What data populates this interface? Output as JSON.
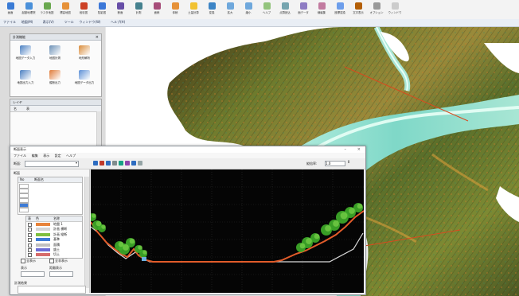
{
  "ribbon": {
    "items": [
      {
        "label": "画面",
        "icon": "window-icon",
        "color": "#3a7bd5"
      },
      {
        "label": "起動地理院",
        "icon": "globe-icon",
        "color": "#4a90d9"
      },
      {
        "label": "ラスタ地図",
        "icon": "raster-icon",
        "color": "#6aa84f"
      },
      {
        "label": "標高地図",
        "icon": "elevation-icon",
        "color": "#e69138"
      },
      {
        "label": "段彩図",
        "icon": "color-relief-icon",
        "color": "#cc4125"
      },
      {
        "label": "陰影図",
        "icon": "shade-icon",
        "color": "#3c78d8"
      },
      {
        "label": "断面",
        "icon": "profile-icon",
        "color": "#674ea7"
      },
      {
        "label": "計測",
        "icon": "ruler-icon",
        "color": "#45818e"
      },
      {
        "label": "面積",
        "icon": "area-icon",
        "color": "#a64d79"
      },
      {
        "label": "体積",
        "icon": "volume-icon",
        "color": "#e69138"
      },
      {
        "label": "土量計算",
        "icon": "calc-icon",
        "color": "#f1c232"
      },
      {
        "label": "変換",
        "icon": "convert-icon",
        "color": "#3d85c6"
      },
      {
        "label": "拡大",
        "icon": "zoom-in-icon",
        "color": "#6fa8dc"
      },
      {
        "label": "縮小",
        "icon": "zoom-out-icon",
        "color": "#6fa8dc"
      },
      {
        "label": "ヘルプ",
        "icon": "help-icon",
        "color": "#93c47d"
      },
      {
        "label": "点群読込",
        "icon": "pointcloud-icon",
        "color": "#76a5af"
      },
      {
        "label": "面データ",
        "icon": "surface-icon",
        "color": "#8e7cc3"
      },
      {
        "label": "線編集",
        "icon": "line-edit-icon",
        "color": "#c27ba0"
      },
      {
        "label": "座標変換",
        "icon": "coord-icon",
        "color": "#6d9eeb"
      },
      {
        "label": "文字表示",
        "icon": "text-icon",
        "color": "#b45f06"
      },
      {
        "label": "オプション",
        "icon": "options-icon",
        "color": "#999999"
      },
      {
        "label": "ウィンドウ",
        "icon": "windows-icon",
        "color": "#cccccc"
      }
    ]
  },
  "menubar": {
    "items": [
      "ファイル",
      "地図(M)",
      "表示(V)",
      "ツール",
      "ウィンドウ(W)",
      "ヘルプ(H)"
    ]
  },
  "panel_tools": {
    "title": "計測機能",
    "tools": [
      {
        "label": "地図データ入力",
        "icon": "map-input-icon",
        "color": "#4a7fc1"
      },
      {
        "label": "地図計測",
        "icon": "map-measure-icon",
        "color": "#6b8fb5"
      },
      {
        "label": "地形解析",
        "icon": "terrain-icon",
        "color": "#d98b3a"
      },
      {
        "label": "地図出力入力",
        "icon": "map-io-icon",
        "color": "#4a7fc1"
      },
      {
        "label": "縦断出力",
        "icon": "profile-out-icon",
        "color": "#e07b39"
      },
      {
        "label": "地図データ出力",
        "icon": "map-export-icon",
        "color": "#5c8fd6"
      }
    ]
  },
  "panel_layers": {
    "title": "レイヤ",
    "header": [
      "名",
      "表"
    ]
  },
  "profile_window": {
    "title": "断面表示",
    "menu": [
      "ファイル",
      "編集",
      "表示",
      "設定",
      "ヘルプ"
    ],
    "field_label": "断面:",
    "scale_label": "縦倍率:",
    "scale_value": "1.0",
    "side": {
      "group1": "断面",
      "col_a": "No",
      "col_b": "断面名",
      "group2_cols": [
        "表",
        "色",
        "名称"
      ],
      "legend": [
        {
          "label": "地盤 1",
          "color": "#e8833a"
        },
        {
          "label": "計画 横断",
          "color": "#d4d4d4"
        },
        {
          "label": "計画 縦断",
          "color": "#7fbf3f"
        },
        {
          "label": "基準",
          "color": "#3d7bd6"
        },
        {
          "label": "面積",
          "color": "#c0c0c0"
        },
        {
          "label": "盛土",
          "color": "#6b6bd6"
        },
        {
          "label": "切土",
          "color": "#d66b6b"
        }
      ],
      "check1": "全表示",
      "check2": "全非表示",
      "opt1": "表示",
      "opt2": "距離表示",
      "select1": "",
      "select2": "",
      "bottom_title": "計測結果"
    },
    "colors": {
      "ground": "#e25c2a",
      "vegetation": "#3fae2a",
      "plan": "#d9d9d9"
    }
  },
  "map": {
    "colors": {
      "low": "#7fd8c8",
      "mid": "#7a8a3a",
      "high": "#4a3a1a",
      "river": "#e8fff6",
      "accent": "#d94a1e"
    }
  }
}
